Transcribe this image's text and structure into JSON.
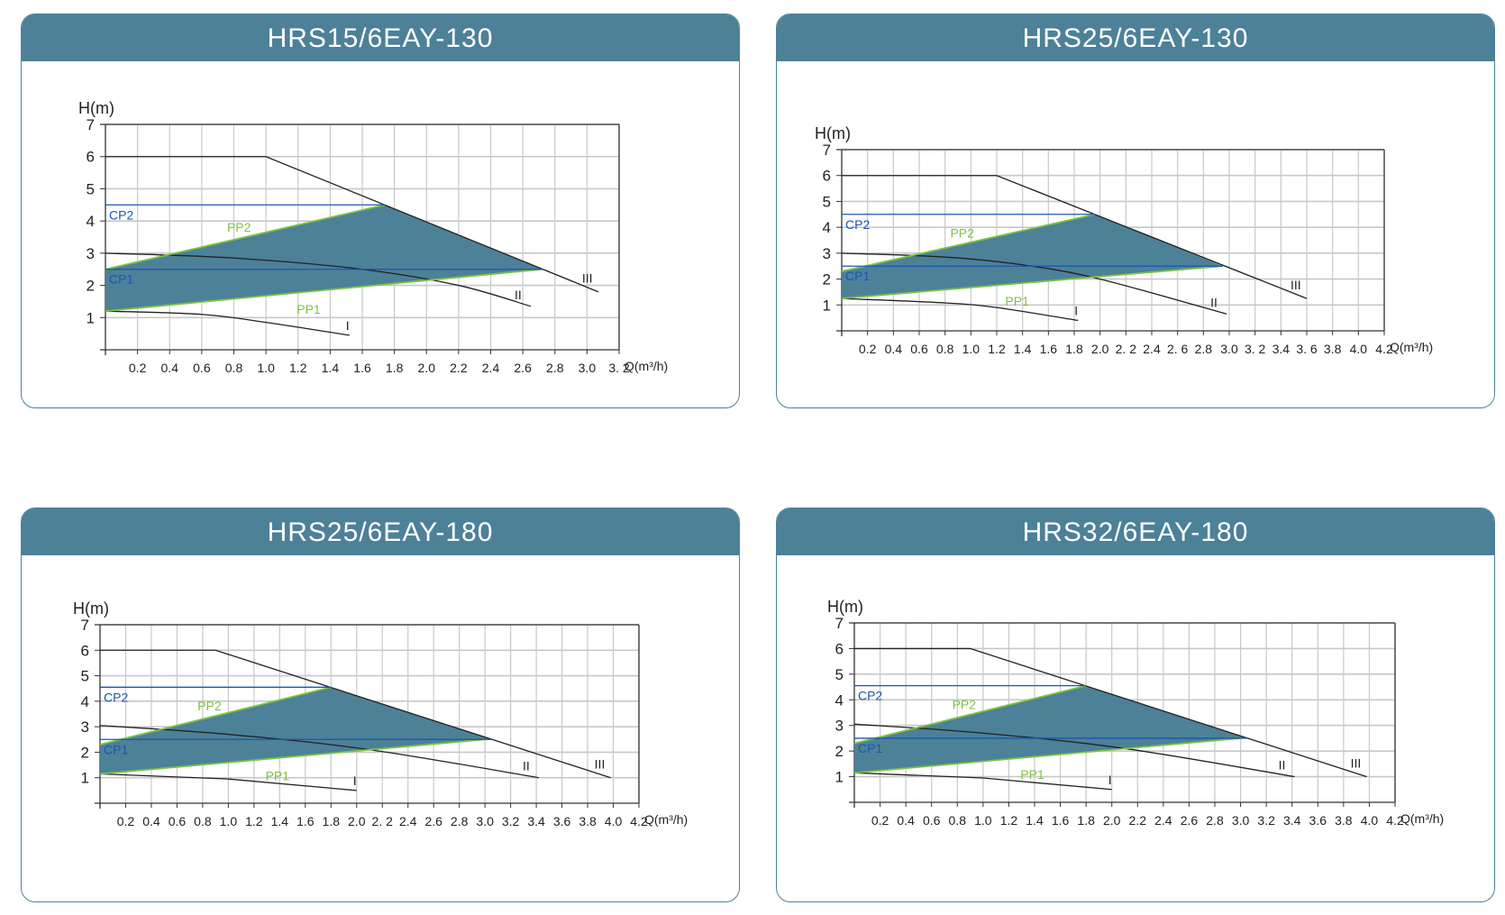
{
  "colors": {
    "header": "#4c8198",
    "fill": "#4c8198",
    "pp": "#7dc242",
    "cp": "#1a56b0",
    "curve": "#222222",
    "grid": "#c8c8c8"
  },
  "chart_data": [
    {
      "type": "line",
      "title": "HRS15/6EAY-130",
      "ylabel": "H(m)",
      "xlabel": "Q(m³/h)",
      "xlim": [
        0,
        3.2
      ],
      "ylim": [
        0,
        7
      ],
      "grid": true,
      "x_ticks": [
        "0.2",
        "0.4",
        "0.6",
        "0.8",
        "1.0",
        "1.2",
        "1.4",
        "1.6",
        "1.8",
        "2.0",
        "2.2",
        "2.4",
        "2.6",
        "2.8",
        "3.0",
        "3. 2"
      ],
      "y_ticks": [
        "1",
        "2",
        "3",
        "4",
        "5",
        "6",
        "7"
      ],
      "series": [
        {
          "name": "III",
          "points": [
            [
              0,
              6
            ],
            [
              1.0,
              6
            ],
            [
              3.07,
              1.8
            ]
          ]
        },
        {
          "name": "II",
          "points": [
            [
              0,
              3
            ],
            [
              0.8,
              2.85
            ],
            [
              1.6,
              2.5
            ],
            [
              2.2,
              2.0
            ],
            [
              2.65,
              1.35
            ]
          ]
        },
        {
          "name": "I",
          "points": [
            [
              0,
              1.2
            ],
            [
              0.6,
              1.1
            ],
            [
              1.0,
              0.85
            ],
            [
              1.52,
              0.45
            ]
          ]
        },
        {
          "name": "PP2",
          "points": [
            [
              0,
              2.5
            ],
            [
              1.74,
              4.5
            ]
          ]
        },
        {
          "name": "PP1",
          "points": [
            [
              0,
              1.2
            ],
            [
              2.72,
              2.5
            ]
          ]
        },
        {
          "name": "CP2",
          "points": [
            [
              0,
              4.5
            ],
            [
              1.74,
              4.5
            ]
          ]
        },
        {
          "name": "CP1",
          "points": [
            [
              0,
              2.5
            ],
            [
              2.72,
              2.5
            ]
          ]
        }
      ],
      "region": [
        [
          0,
          1.2
        ],
        [
          0,
          2.5
        ],
        [
          1.74,
          4.5
        ],
        [
          2.72,
          2.5
        ]
      ]
    },
    {
      "type": "line",
      "title": "HRS25/6EAY-130",
      "ylabel": "H(m)",
      "xlabel": "Q(m³/h)",
      "xlim": [
        0,
        4.2
      ],
      "ylim": [
        0,
        7
      ],
      "grid": true,
      "x_ticks": [
        "0.2",
        "0.4",
        "0.6",
        "0.8",
        "1.0",
        "1.2",
        "1.4",
        "1.6",
        "1.8",
        "2.0",
        "2. 2",
        "2.4",
        "2. 6",
        "2.8",
        "3.0",
        "3. 2",
        "3.4",
        "3. 6",
        "3.8",
        "4.0",
        "4.2"
      ],
      "y_ticks": [
        "1",
        "2",
        "3",
        "4",
        "5",
        "6",
        "7"
      ],
      "series": [
        {
          "name": "III",
          "points": [
            [
              0,
              6
            ],
            [
              1.2,
              6
            ],
            [
              3.6,
              1.25
            ]
          ]
        },
        {
          "name": "II",
          "points": [
            [
              0,
              3
            ],
            [
              0.8,
              2.85
            ],
            [
              1.4,
              2.55
            ],
            [
              2.0,
              2.0
            ],
            [
              2.98,
              0.65
            ]
          ]
        },
        {
          "name": "I",
          "points": [
            [
              0,
              1.25
            ],
            [
              0.8,
              1.08
            ],
            [
              1.2,
              0.9
            ],
            [
              1.83,
              0.4
            ]
          ]
        },
        {
          "name": "PP2",
          "points": [
            [
              0,
              2.3
            ],
            [
              1.96,
              4.5
            ]
          ]
        },
        {
          "name": "PP1",
          "points": [
            [
              0,
              1.25
            ],
            [
              2.95,
              2.5
            ]
          ]
        },
        {
          "name": "CP2",
          "points": [
            [
              0,
              4.5
            ],
            [
              1.96,
              4.5
            ]
          ]
        },
        {
          "name": "CP1",
          "points": [
            [
              0,
              2.5
            ],
            [
              2.95,
              2.5
            ]
          ]
        }
      ],
      "region": [
        [
          0,
          1.25
        ],
        [
          0,
          2.3
        ],
        [
          1.96,
          4.5
        ],
        [
          2.95,
          2.5
        ]
      ]
    },
    {
      "type": "line",
      "title": "HRS25/6EAY-180",
      "ylabel": "H(m)",
      "xlabel": "Q(m³/h)",
      "xlim": [
        0,
        4.2
      ],
      "ylim": [
        0,
        7
      ],
      "grid": true,
      "x_ticks": [
        "0.2",
        "0.4",
        "0.6",
        "0.8",
        "1.0",
        "1.2",
        "1.4",
        "1.6",
        "1.8",
        "2.0",
        "2. 2",
        "2.4",
        "2.6",
        "2.8",
        "3.0",
        "3.2",
        "3.4",
        "3.6",
        "3.8",
        "4.0",
        "4.2"
      ],
      "y_ticks": [
        "1",
        "2",
        "3",
        "4",
        "5",
        "6",
        "7"
      ],
      "series": [
        {
          "name": "III",
          "points": [
            [
              0,
              6
            ],
            [
              0.9,
              6
            ],
            [
              3.98,
              1.0
            ]
          ]
        },
        {
          "name": "II",
          "points": [
            [
              0,
              3.05
            ],
            [
              1.0,
              2.7
            ],
            [
              2.1,
              2.1
            ],
            [
              3.42,
              1.0
            ]
          ]
        },
        {
          "name": "I",
          "points": [
            [
              0,
              1.15
            ],
            [
              1.0,
              0.95
            ],
            [
              2.0,
              0.5
            ]
          ]
        },
        {
          "name": "PP2",
          "points": [
            [
              0,
              2.3
            ],
            [
              1.8,
              4.55
            ]
          ]
        },
        {
          "name": "PP1",
          "points": [
            [
              0,
              1.15
            ],
            [
              3.0,
              2.5
            ]
          ]
        },
        {
          "name": "CP2",
          "points": [
            [
              0,
              4.55
            ],
            [
              1.8,
              4.55
            ]
          ]
        },
        {
          "name": "CP1",
          "points": [
            [
              0,
              2.5
            ],
            [
              3.05,
              2.5
            ]
          ]
        }
      ],
      "region": [
        [
          0,
          1.15
        ],
        [
          0,
          2.3
        ],
        [
          1.8,
          4.55
        ],
        [
          3.05,
          2.5
        ]
      ]
    },
    {
      "type": "line",
      "title": "HRS32/6EAY-180",
      "ylabel": "H(m)",
      "xlabel": "Q(m³/h)",
      "xlim": [
        0,
        4.2
      ],
      "ylim": [
        0,
        7
      ],
      "grid": true,
      "x_ticks": [
        "0.2",
        "0.4",
        "0.6",
        "0.8",
        "1.0",
        "1.2",
        "1.4",
        "1.6",
        "1.8",
        "2.0",
        "2.2",
        "2.4",
        "2.6",
        "2.8",
        "3.0",
        "3.2",
        "3.4",
        "3.6",
        "3.8",
        "4.0",
        "4.2"
      ],
      "y_ticks": [
        "1",
        "2",
        "3",
        "4",
        "5",
        "6",
        "7"
      ],
      "series": [
        {
          "name": "III",
          "points": [
            [
              0,
              6
            ],
            [
              0.9,
              6
            ],
            [
              3.98,
              1.0
            ]
          ]
        },
        {
          "name": "II",
          "points": [
            [
              0,
              3.05
            ],
            [
              1.0,
              2.7
            ],
            [
              2.1,
              2.1
            ],
            [
              3.42,
              1.0
            ]
          ]
        },
        {
          "name": "I",
          "points": [
            [
              0,
              1.15
            ],
            [
              1.0,
              0.95
            ],
            [
              2.0,
              0.5
            ]
          ]
        },
        {
          "name": "PP2",
          "points": [
            [
              0,
              2.3
            ],
            [
              1.8,
              4.55
            ]
          ]
        },
        {
          "name": "PP1",
          "points": [
            [
              0,
              1.15
            ],
            [
              3.0,
              2.5
            ]
          ]
        },
        {
          "name": "CP2",
          "points": [
            [
              0,
              4.55
            ],
            [
              1.8,
              4.55
            ]
          ]
        },
        {
          "name": "CP1",
          "points": [
            [
              0,
              2.5
            ],
            [
              3.05,
              2.5
            ]
          ]
        }
      ],
      "region": [
        [
          0,
          1.15
        ],
        [
          0,
          2.3
        ],
        [
          1.8,
          4.55
        ],
        [
          3.05,
          2.5
        ]
      ]
    }
  ]
}
